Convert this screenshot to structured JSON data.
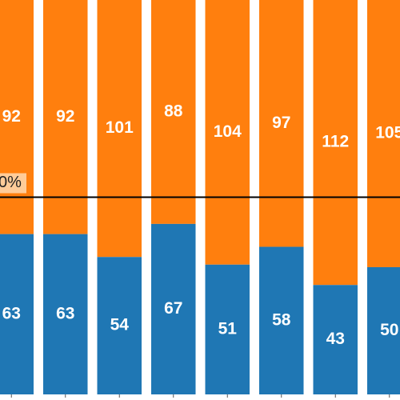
{
  "chart_data": {
    "type": "bar",
    "stacked": true,
    "normalized": true,
    "categories": [
      "",
      "",
      "",
      "",
      "",
      "",
      "",
      ""
    ],
    "series": [
      {
        "values": [
          63,
          63,
          54,
          67,
          51,
          58,
          43,
          50
        ],
        "color": "#1f77b4"
      },
      {
        "values": [
          92,
          92,
          101,
          88,
          104,
          97,
          112,
          105
        ],
        "color": "#ff7f0e"
      }
    ],
    "value_labels": {
      "bottom": [
        "63",
        "63",
        "54",
        "67",
        "51",
        "58",
        "43",
        "50"
      ],
      "top": [
        "92",
        "92",
        "101",
        "88",
        "104",
        "97",
        "112",
        "105"
      ]
    },
    "reference_line": {
      "value": 50,
      "label": "0%",
      "color": "#000000",
      "label_bg": "#ffcc99"
    },
    "ylim": [
      0,
      100
    ],
    "grid": false,
    "legend": "none"
  }
}
